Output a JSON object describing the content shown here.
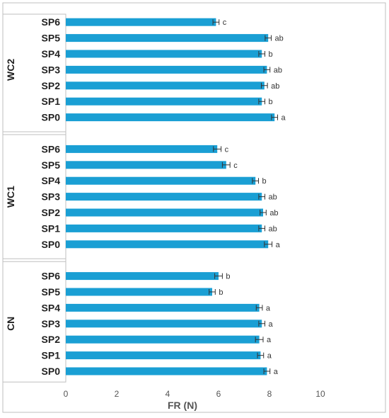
{
  "chart_data": {
    "type": "bar",
    "orientation": "horizontal",
    "xlabel": "FR (N)",
    "xlim": [
      0,
      10
    ],
    "xticks": [
      0,
      2,
      4,
      6,
      8,
      10
    ],
    "bar_color": "#1a9fd4",
    "groups": [
      {
        "name": "WC2",
        "categories": [
          "SP6",
          "SP5",
          "SP4",
          "SP3",
          "SP2",
          "SP1",
          "SP0"
        ],
        "values": [
          5.9,
          7.95,
          7.7,
          7.9,
          7.8,
          7.7,
          8.2
        ],
        "errors": [
          0.12,
          0.12,
          0.12,
          0.12,
          0.12,
          0.12,
          0.12
        ],
        "labels": [
          "c",
          "ab",
          "b",
          "ab",
          "ab",
          "b",
          "a"
        ]
      },
      {
        "name": "WC1",
        "categories": [
          "SP6",
          "SP5",
          "SP4",
          "SP3",
          "SP2",
          "SP1",
          "SP0"
        ],
        "values": [
          5.95,
          6.3,
          7.45,
          7.7,
          7.75,
          7.7,
          7.95
        ],
        "errors": [
          0.15,
          0.15,
          0.12,
          0.12,
          0.12,
          0.12,
          0.15
        ],
        "labels": [
          "c",
          "c",
          "b",
          "ab",
          "ab",
          "ab",
          "a"
        ]
      },
      {
        "name": "CN",
        "categories": [
          "SP6",
          "SP5",
          "SP4",
          "SP3",
          "SP2",
          "SP1",
          "SP0"
        ],
        "values": [
          6.0,
          5.75,
          7.6,
          7.7,
          7.6,
          7.65,
          7.9
        ],
        "errors": [
          0.15,
          0.12,
          0.12,
          0.12,
          0.15,
          0.12,
          0.12
        ],
        "labels": [
          "b",
          "b",
          "a",
          "a",
          "a",
          "a",
          "a"
        ]
      }
    ]
  }
}
